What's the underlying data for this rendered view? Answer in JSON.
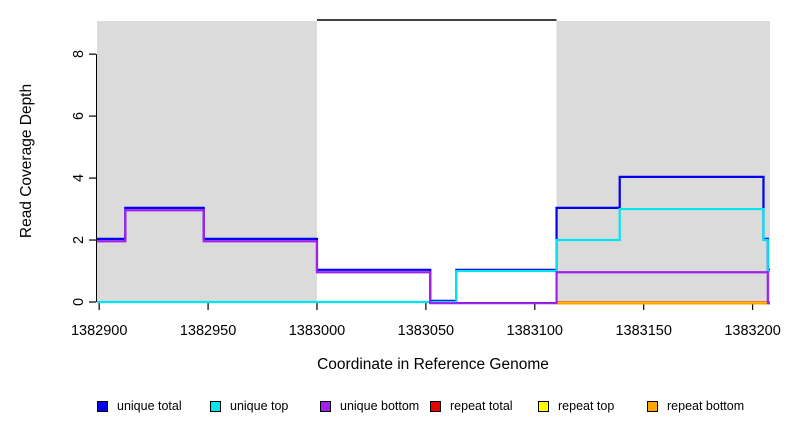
{
  "chart_data": {
    "type": "line",
    "subtype": "step-coverage",
    "title": "",
    "xlabel": "Coordinate in Reference Genome",
    "ylabel": "Read Coverage Depth",
    "xlim": [
      1382899,
      1383208
    ],
    "ylim": [
      0,
      9.07
    ],
    "grid": "off",
    "background_color": "#ffffff",
    "shaded_region_color": "#dbdbdb",
    "shaded_regions": [
      {
        "x1": 1382899,
        "x2": 1383000
      },
      {
        "x1": 1383110,
        "x2": 1383208
      }
    ],
    "top_segment": {
      "x1": 1383000,
      "x2": 1383110,
      "y": 9.07,
      "color": "#000000"
    },
    "x_ticks": [
      {
        "value": 1382900,
        "label": "1382900"
      },
      {
        "value": 1382950,
        "label": "1382950"
      },
      {
        "value": 1383000,
        "label": "1383000"
      },
      {
        "value": 1383050,
        "label": "1383050"
      },
      {
        "value": 1383100,
        "label": "1383100"
      },
      {
        "value": 1383150,
        "label": "1383150"
      },
      {
        "value": 1383200,
        "label": "1383200"
      }
    ],
    "y_ticks": [
      {
        "value": 0,
        "label": "0"
      },
      {
        "value": 2,
        "label": "2"
      },
      {
        "value": 4,
        "label": "4"
      },
      {
        "value": 6,
        "label": "6"
      },
      {
        "value": 8,
        "label": "8"
      }
    ],
    "legend_position": "bottom",
    "series": [
      {
        "name": "unique total",
        "color": "#0000ee",
        "x_end": 1383208,
        "points": [
          [
            1382899,
            2
          ],
          [
            1382912,
            3
          ],
          [
            1382948,
            2
          ],
          [
            1383000,
            1
          ],
          [
            1383052,
            0
          ],
          [
            1383064,
            1
          ],
          [
            1383110,
            3
          ],
          [
            1383139,
            4
          ],
          [
            1383205,
            2
          ],
          [
            1383207,
            1
          ]
        ]
      },
      {
        "name": "unique top",
        "color": "#00e5ee",
        "x_end": 1383208,
        "points": [
          [
            1382899,
            0
          ],
          [
            1383064,
            1
          ],
          [
            1383110,
            2
          ],
          [
            1383139,
            3
          ],
          [
            1383205,
            2
          ],
          [
            1383207,
            1
          ]
        ]
      },
      {
        "name": "unique bottom",
        "color": "#a020f0",
        "x_end": 1383208,
        "points": [
          [
            1382899,
            2
          ],
          [
            1382912,
            3
          ],
          [
            1382948,
            2
          ],
          [
            1383000,
            1
          ],
          [
            1383052,
            0
          ],
          [
            1383110,
            1
          ],
          [
            1383207,
            0
          ]
        ]
      },
      {
        "name": "repeat total",
        "color": "#ee0000",
        "x_end": 1383208,
        "points": [
          [
            1383110,
            0
          ]
        ]
      },
      {
        "name": "repeat top",
        "color": "#ffff00",
        "x_end": 1383208,
        "points": [
          [
            1383110,
            0
          ]
        ]
      },
      {
        "name": "repeat bottom",
        "color": "#ffa500",
        "x_end": 1383208,
        "points": [
          [
            1383110,
            0
          ]
        ]
      }
    ]
  }
}
